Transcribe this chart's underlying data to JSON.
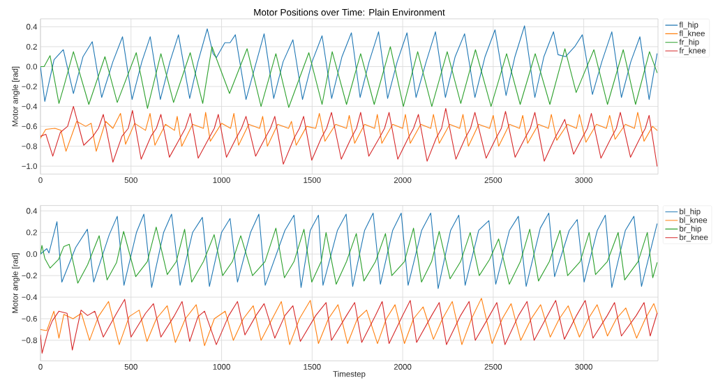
{
  "chart_data": [
    {
      "type": "line",
      "title": "Motor Positions over Time: Plain Environment",
      "ylabel": "Motor angle [rad]",
      "xlim": [
        0,
        3410
      ],
      "ylim": [
        -1.08,
        0.48
      ],
      "xticks": [
        0,
        500,
        1000,
        1500,
        2000,
        2500,
        3000
      ],
      "yticks": [
        {
          "value": -1.0,
          "label": "−1.0"
        },
        {
          "value": -0.8,
          "label": "−0.8"
        },
        {
          "value": -0.6,
          "label": "−0.6"
        },
        {
          "value": -0.4,
          "label": "−0.4"
        },
        {
          "value": -0.2,
          "label": "−0.2"
        },
        {
          "value": 0.0,
          "label": "0.0"
        },
        {
          "value": 0.2,
          "label": "0.2"
        },
        {
          "value": 0.4,
          "label": "0.4"
        }
      ],
      "grid": true,
      "legend": "top right",
      "series": [
        {
          "name": "fl_hip",
          "color": "#1f77b4",
          "x": [
            0,
            24,
            75,
            126,
            182,
            235,
            286,
            338,
            400,
            453,
            506,
            560,
            606,
            662,
            715,
            762,
            824,
            870,
            921,
            953,
            971,
            1018,
            1047,
            1076,
            1135,
            1185,
            1235,
            1288,
            1340,
            1394,
            1447,
            1500,
            1555,
            1608,
            1665,
            1717,
            1765,
            1815,
            1867,
            1917,
            1970,
            2024,
            2074,
            2130,
            2181,
            2236,
            2290,
            2342,
            2399,
            2455,
            2510,
            2571,
            2620,
            2673,
            2730,
            2780,
            2833,
            2858,
            2900,
            2950,
            2992,
            3048,
            3100,
            3155,
            3208,
            3260,
            3310,
            3361,
            3405
          ],
          "values": [
            0.0,
            -0.35,
            0.07,
            0.17,
            -0.27,
            0.1,
            0.25,
            -0.31,
            0.05,
            0.3,
            -0.33,
            0.05,
            0.3,
            -0.33,
            0.05,
            0.32,
            -0.32,
            0.05,
            0.38,
            0.13,
            0.09,
            0.24,
            0.24,
            0.32,
            -0.33,
            0.0,
            0.33,
            -0.32,
            0.05,
            0.27,
            -0.33,
            0.05,
            0.31,
            -0.32,
            0.1,
            0.34,
            -0.31,
            0.05,
            0.35,
            -0.32,
            0.05,
            0.34,
            -0.31,
            0.05,
            0.35,
            -0.31,
            0.1,
            0.33,
            -0.31,
            0.1,
            0.37,
            -0.29,
            0.1,
            0.41,
            -0.31,
            0.1,
            0.35,
            0.12,
            0.1,
            0.2,
            0.32,
            -0.28,
            0.05,
            0.35,
            -0.31,
            0.05,
            0.3,
            -0.33,
            0.13
          ]
        },
        {
          "name": "fl_knee",
          "color": "#ff7f0e",
          "x": [
            0,
            29,
            80,
            113,
            141,
            200,
            250,
            280,
            308,
            360,
            400,
            442,
            470,
            520,
            580,
            605,
            632,
            690,
            740,
            755,
            780,
            840,
            900,
            912,
            938,
            1000,
            1050,
            1068,
            1094,
            1150,
            1210,
            1227,
            1253,
            1310,
            1370,
            1386,
            1412,
            1470,
            1520,
            1540,
            1571,
            1630,
            1690,
            1705,
            1735,
            1790,
            1845,
            1860,
            1885,
            1945,
            2000,
            2015,
            2042,
            2100,
            2155,
            2170,
            2202,
            2260,
            2315,
            2333,
            2363,
            2420,
            2480,
            2500,
            2530,
            2590,
            2645,
            2663,
            2690,
            2750,
            2805,
            2821,
            2851,
            2910,
            2960,
            2976,
            3012,
            3070,
            3125,
            3143,
            3173,
            3230,
            3280,
            3298,
            3333,
            3380,
            3405
          ],
          "values": [
            -0.72,
            -0.63,
            -0.62,
            -0.64,
            -0.85,
            -0.55,
            -0.6,
            -0.57,
            -0.85,
            -0.55,
            -0.62,
            -0.47,
            -0.78,
            -0.57,
            -0.64,
            -0.47,
            -0.79,
            -0.58,
            -0.64,
            -0.5,
            -0.8,
            -0.58,
            -0.62,
            -0.46,
            -0.75,
            -0.57,
            -0.62,
            -0.47,
            -0.79,
            -0.58,
            -0.62,
            -0.5,
            -0.8,
            -0.58,
            -0.62,
            -0.55,
            -0.79,
            -0.6,
            -0.62,
            -0.47,
            -0.75,
            -0.58,
            -0.62,
            -0.49,
            -0.77,
            -0.58,
            -0.62,
            -0.48,
            -0.77,
            -0.58,
            -0.62,
            -0.48,
            -0.77,
            -0.58,
            -0.62,
            -0.48,
            -0.77,
            -0.58,
            -0.62,
            -0.48,
            -0.8,
            -0.58,
            -0.62,
            -0.49,
            -0.8,
            -0.58,
            -0.62,
            -0.49,
            -0.77,
            -0.58,
            -0.62,
            -0.48,
            -0.74,
            -0.58,
            -0.62,
            -0.48,
            -0.76,
            -0.58,
            -0.62,
            -0.49,
            -0.73,
            -0.58,
            -0.62,
            -0.46,
            -0.75,
            -0.6,
            -0.64
          ]
        },
        {
          "name": "fr_hip",
          "color": "#2ca02c",
          "x": [
            0,
            20,
            53,
            102,
            129,
            182,
            267,
            356,
            424,
            529,
            591,
            665,
            735,
            827,
            896,
            947,
            1044,
            1141,
            1218,
            1300,
            1371,
            1482,
            1555,
            1611,
            1690,
            1768,
            1843,
            1932,
            2004,
            2083,
            2161,
            2246,
            2321,
            2402,
            2488,
            2574,
            2649,
            2732,
            2813,
            2896,
            2958,
            3056,
            3131,
            3218,
            3286,
            3363,
            3405
          ],
          "values": [
            0.0,
            0.0,
            0.11,
            -0.37,
            -0.2,
            0.15,
            -0.38,
            0.1,
            -0.36,
            0.14,
            -0.42,
            0.13,
            -0.36,
            0.14,
            -0.37,
            0.2,
            -0.27,
            0.18,
            -0.4,
            0.13,
            -0.41,
            0.14,
            -0.38,
            0.15,
            -0.38,
            0.13,
            -0.38,
            0.2,
            -0.4,
            0.15,
            -0.4,
            0.15,
            -0.37,
            0.17,
            -0.4,
            0.13,
            -0.38,
            0.13,
            -0.38,
            0.18,
            -0.26,
            0.17,
            -0.38,
            0.17,
            -0.38,
            0.15,
            -0.06
          ]
        },
        {
          "name": "fr_knee",
          "color": "#d62728",
          "x": [
            0,
            30,
            68,
            110,
            150,
            182,
            239,
            290,
            320,
            347,
            400,
            450,
            485,
            508,
            556,
            610,
            640,
            665,
            712,
            770,
            800,
            827,
            871,
            930,
            960,
            982,
            1027,
            1080,
            1110,
            1135,
            1188,
            1240,
            1270,
            1294,
            1341,
            1400,
            1430,
            1453,
            1498,
            1550,
            1580,
            1607,
            1661,
            1715,
            1745,
            1768,
            1813,
            1870,
            1900,
            1925,
            1973,
            2030,
            2060,
            2087,
            2135,
            2185,
            2215,
            2238,
            2294,
            2345,
            2375,
            2399,
            2461,
            2515,
            2545,
            2568,
            2621,
            2675,
            2705,
            2730,
            2782,
            2840,
            2870,
            2895,
            2944,
            2990,
            3020,
            3042,
            3095,
            3150,
            3180,
            3202,
            3258,
            3310,
            3340,
            3361,
            3405
          ],
          "values": [
            -0.7,
            -0.68,
            -0.9,
            -0.66,
            -0.6,
            -0.4,
            -0.79,
            -0.7,
            -0.62,
            -0.48,
            -0.96,
            -0.7,
            -0.62,
            -0.44,
            -0.93,
            -0.7,
            -0.62,
            -0.48,
            -0.91,
            -0.72,
            -0.62,
            -0.47,
            -0.92,
            -0.72,
            -0.62,
            -0.48,
            -0.91,
            -0.72,
            -0.62,
            -0.5,
            -0.9,
            -0.72,
            -0.62,
            -0.5,
            -0.98,
            -0.72,
            -0.62,
            -0.5,
            -0.94,
            -0.72,
            -0.62,
            -0.46,
            -0.93,
            -0.72,
            -0.62,
            -0.46,
            -0.9,
            -0.72,
            -0.62,
            -0.46,
            -0.93,
            -0.72,
            -0.62,
            -0.48,
            -0.95,
            -0.72,
            -0.62,
            -0.42,
            -0.93,
            -0.72,
            -0.62,
            -0.46,
            -0.92,
            -0.72,
            -0.62,
            -0.45,
            -0.91,
            -0.72,
            -0.62,
            -0.46,
            -0.95,
            -0.72,
            -0.62,
            -0.53,
            -0.88,
            -0.72,
            -0.62,
            -0.47,
            -0.92,
            -0.72,
            -0.62,
            -0.46,
            -0.91,
            -0.72,
            -0.62,
            -0.49,
            -1.0
          ]
        }
      ]
    },
    {
      "type": "line",
      "xlabel": "Timestep",
      "ylabel": "Motor angle [rad]",
      "xlim": [
        0,
        3410
      ],
      "ylim": [
        -0.99,
        0.45
      ],
      "xticks": [
        0,
        500,
        1000,
        1500,
        2000,
        2500,
        3000
      ],
      "yticks": [
        {
          "value": -0.8,
          "label": "−0.8"
        },
        {
          "value": -0.6,
          "label": "−0.6"
        },
        {
          "value": -0.4,
          "label": "−0.4"
        },
        {
          "value": -0.2,
          "label": "−0.2"
        },
        {
          "value": 0.0,
          "label": "0.0"
        },
        {
          "value": 0.2,
          "label": "0.2"
        },
        {
          "value": 0.4,
          "label": "0.4"
        }
      ],
      "grid": true,
      "legend": "top right",
      "series": [
        {
          "name": "bl_hip",
          "color": "#1f77b4",
          "x": [
            0,
            35,
            47,
            91,
            118,
            194,
            259,
            294,
            380,
            424,
            461,
            530,
            571,
            614,
            680,
            724,
            771,
            840,
            894,
            933,
            1000,
            1047,
            1088,
            1160,
            1206,
            1241,
            1350,
            1400,
            1439,
            1490,
            1535,
            1560,
            1640,
            1688,
            1724,
            1790,
            1837,
            1877,
            1945,
            1992,
            2030,
            2105,
            2155,
            2196,
            2265,
            2310,
            2345,
            2420,
            2476,
            2514,
            2590,
            2639,
            2682,
            2760,
            2807,
            2839,
            2920,
            2964,
            3002,
            3075,
            3119,
            3155,
            3230,
            3277,
            3319,
            3405
          ],
          "values": [
            0.0,
            0.05,
            0.01,
            0.3,
            -0.26,
            0.06,
            0.23,
            -0.26,
            0.18,
            0.35,
            -0.29,
            0.2,
            0.37,
            -0.31,
            0.2,
            0.37,
            -0.29,
            0.2,
            0.34,
            -0.3,
            0.2,
            0.33,
            -0.26,
            0.2,
            0.37,
            -0.29,
            0.22,
            0.36,
            -0.31,
            0.22,
            0.36,
            -0.29,
            0.22,
            0.37,
            -0.3,
            0.22,
            0.38,
            -0.28,
            0.22,
            0.38,
            -0.29,
            0.22,
            0.38,
            -0.32,
            0.22,
            0.36,
            -0.29,
            0.22,
            0.31,
            -0.28,
            0.22,
            0.35,
            -0.3,
            0.24,
            0.38,
            -0.21,
            0.22,
            0.32,
            -0.26,
            0.22,
            0.36,
            -0.31,
            0.22,
            0.35,
            -0.3,
            0.28
          ]
        },
        {
          "name": "bl_knee",
          "color": "#ff7f0e",
          "x": [
            0,
            35,
            74,
            102,
            129,
            180,
            226,
            271,
            320,
            376,
            435,
            490,
            545,
            588,
            640,
            700,
            745,
            800,
            860,
            906,
            960,
            1020,
            1065,
            1120,
            1175,
            1218,
            1280,
            1330,
            1376,
            1430,
            1490,
            1535,
            1590,
            1643,
            1696,
            1750,
            1801,
            1861,
            1910,
            1958,
            2010,
            2060,
            2113,
            2170,
            2220,
            2274,
            2327,
            2380,
            2435,
            2494,
            2550,
            2599,
            2652,
            2710,
            2762,
            2815,
            2865,
            2914,
            2976,
            3025,
            3074,
            3131,
            3180,
            3232,
            3292,
            3340,
            3387,
            3405
          ],
          "values": [
            -0.7,
            -0.71,
            -0.53,
            -0.78,
            -0.56,
            -0.6,
            -0.55,
            -0.8,
            -0.58,
            -0.44,
            -0.84,
            -0.58,
            -0.52,
            -0.81,
            -0.6,
            -0.48,
            -0.82,
            -0.6,
            -0.47,
            -0.85,
            -0.6,
            -0.53,
            -0.8,
            -0.6,
            -0.48,
            -0.8,
            -0.6,
            -0.44,
            -0.84,
            -0.6,
            -0.43,
            -0.83,
            -0.6,
            -0.47,
            -0.83,
            -0.6,
            -0.52,
            -0.83,
            -0.6,
            -0.47,
            -0.83,
            -0.6,
            -0.49,
            -0.79,
            -0.6,
            -0.44,
            -0.84,
            -0.6,
            -0.41,
            -0.83,
            -0.6,
            -0.46,
            -0.8,
            -0.6,
            -0.47,
            -0.77,
            -0.6,
            -0.48,
            -0.77,
            -0.6,
            -0.47,
            -0.76,
            -0.6,
            -0.5,
            -0.78,
            -0.6,
            -0.46,
            -0.55
          ]
        },
        {
          "name": "br_hip",
          "color": "#2ca02c",
          "x": [
            0,
            8,
            24,
            53,
            100,
            129,
            159,
            206,
            260,
            324,
            368,
            420,
            459,
            526,
            590,
            639,
            700,
            750,
            796,
            835,
            900,
            959,
            1006,
            1060,
            1106,
            1171,
            1240,
            1300,
            1347,
            1400,
            1455,
            1498,
            1550,
            1577,
            1633,
            1690,
            1744,
            1786,
            1850,
            1905,
            1940,
            2010,
            2060,
            2104,
            2160,
            2202,
            2262,
            2320,
            2373,
            2423,
            2480,
            2530,
            2589,
            2650,
            2702,
            2750,
            2810,
            2869,
            2911,
            2980,
            3030,
            3065,
            3130,
            3190,
            3226,
            3300,
            3351,
            3381,
            3405
          ],
          "values": [
            0.0,
            0.08,
            -0.04,
            -0.13,
            -0.05,
            0.07,
            0.09,
            -0.27,
            -0.1,
            0.17,
            -0.24,
            -0.08,
            0.21,
            -0.21,
            -0.07,
            0.25,
            -0.19,
            -0.07,
            0.23,
            -0.26,
            -0.07,
            0.18,
            -0.2,
            -0.07,
            0.17,
            -0.2,
            -0.07,
            0.24,
            -0.22,
            -0.07,
            0.23,
            -0.26,
            -0.07,
            0.2,
            -0.28,
            -0.07,
            0.19,
            -0.25,
            -0.07,
            0.19,
            -0.2,
            -0.07,
            0.24,
            -0.26,
            -0.07,
            0.21,
            -0.23,
            -0.07,
            0.2,
            -0.2,
            -0.05,
            0.14,
            -0.28,
            -0.07,
            0.23,
            -0.25,
            -0.07,
            0.22,
            -0.2,
            -0.07,
            0.2,
            -0.19,
            -0.07,
            0.2,
            -0.24,
            -0.07,
            0.2,
            -0.22,
            -0.08
          ]
        },
        {
          "name": "br_knee",
          "color": "#d62728",
          "x": [
            0,
            9,
            41,
            65,
            102,
            147,
            176,
            224,
            260,
            300,
            347,
            420,
            465,
            500,
            580,
            624,
            665,
            740,
            782,
            824,
            870,
            906,
            971,
            1040,
            1088,
            1129,
            1190,
            1235,
            1294,
            1350,
            1394,
            1435,
            1520,
            1577,
            1607,
            1690,
            1735,
            1774,
            1850,
            1887,
            1925,
            2000,
            2042,
            2077,
            2160,
            2202,
            2242,
            2320,
            2367,
            2401,
            2480,
            2520,
            2565,
            2640,
            2687,
            2726,
            2800,
            2845,
            2893,
            2960,
            3008,
            3051,
            3130,
            3170,
            3208,
            3290,
            3333,
            3367,
            3405
          ],
          "values": [
            -0.75,
            -0.92,
            -0.72,
            -0.62,
            -0.53,
            -0.55,
            -0.89,
            -0.52,
            -0.57,
            -0.53,
            -0.77,
            -0.55,
            -0.42,
            -0.77,
            -0.55,
            -0.46,
            -0.77,
            -0.57,
            -0.44,
            -0.81,
            -0.58,
            -0.53,
            -0.84,
            -0.57,
            -0.44,
            -0.75,
            -0.57,
            -0.46,
            -0.78,
            -0.57,
            -0.48,
            -0.81,
            -0.57,
            -0.45,
            -0.8,
            -0.57,
            -0.45,
            -0.82,
            -0.57,
            -0.44,
            -0.83,
            -0.57,
            -0.43,
            -0.82,
            -0.57,
            -0.45,
            -0.84,
            -0.57,
            -0.44,
            -0.8,
            -0.57,
            -0.45,
            -0.84,
            -0.57,
            -0.44,
            -0.8,
            -0.57,
            -0.43,
            -0.79,
            -0.57,
            -0.43,
            -0.78,
            -0.57,
            -0.45,
            -0.76,
            -0.57,
            -0.45,
            -0.76,
            -0.55
          ]
        }
      ]
    }
  ]
}
